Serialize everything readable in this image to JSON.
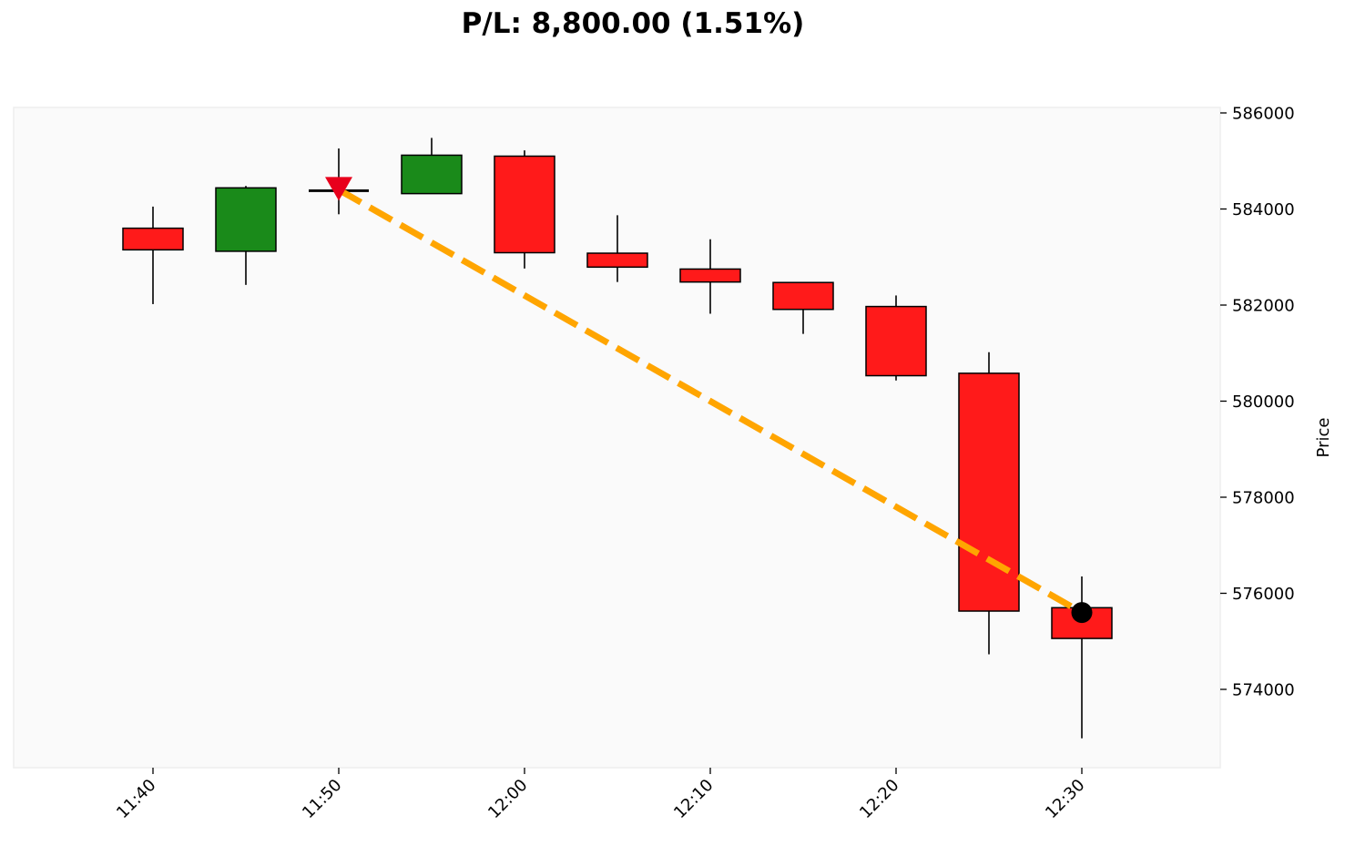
{
  "chart_data": {
    "type": "candlestick",
    "title": "P/L: 8,800.00 (1.51%)",
    "xlabel": "",
    "ylabel": "Price",
    "ylim": [
      572400,
      586120
    ],
    "yticks": [
      574000,
      576000,
      578000,
      580000,
      582000,
      584000,
      586000
    ],
    "xticks": [
      "11:40",
      "11:50",
      "12:00",
      "12:10",
      "12:20",
      "12:30"
    ],
    "candles": [
      {
        "time": "11:40",
        "open": 583600,
        "high": 584050,
        "low": 582020,
        "close": 583150
      },
      {
        "time": "11:45",
        "open": 583120,
        "high": 584480,
        "low": 582420,
        "close": 584440
      },
      {
        "time": "11:50",
        "open": 584380,
        "high": 585260,
        "low": 583890,
        "close": 584380
      },
      {
        "time": "11:55",
        "open": 584320,
        "high": 585480,
        "low": 584320,
        "close": 585120
      },
      {
        "time": "12:00",
        "open": 585100,
        "high": 585220,
        "low": 582760,
        "close": 583090
      },
      {
        "time": "12:05",
        "open": 583080,
        "high": 583870,
        "low": 582480,
        "close": 582790
      },
      {
        "time": "12:10",
        "open": 582750,
        "high": 583370,
        "low": 581820,
        "close": 582480
      },
      {
        "time": "12:15",
        "open": 582470,
        "high": 582470,
        "low": 581400,
        "close": 581910
      },
      {
        "time": "12:20",
        "open": 581970,
        "high": 582200,
        "low": 580430,
        "close": 580530
      },
      {
        "time": "12:25",
        "open": 580580,
        "high": 581020,
        "low": 574730,
        "close": 575630
      },
      {
        "time": "12:30",
        "open": 575700,
        "high": 576350,
        "low": 572980,
        "close": 575060
      }
    ],
    "trade": {
      "entry": {
        "time": "11:50",
        "price": 584400
      },
      "exit": {
        "time": "12:30",
        "price": 575600
      }
    },
    "colors": {
      "up": "#1a8a1a",
      "down": "#ff1a1a",
      "wick": "#000000",
      "trade_line": "#ffa500",
      "entry_marker": "#e8001c",
      "exit_marker": "#000000",
      "plot_background": "#fafafa",
      "plot_border": "#eeeeee"
    },
    "grid": false
  }
}
